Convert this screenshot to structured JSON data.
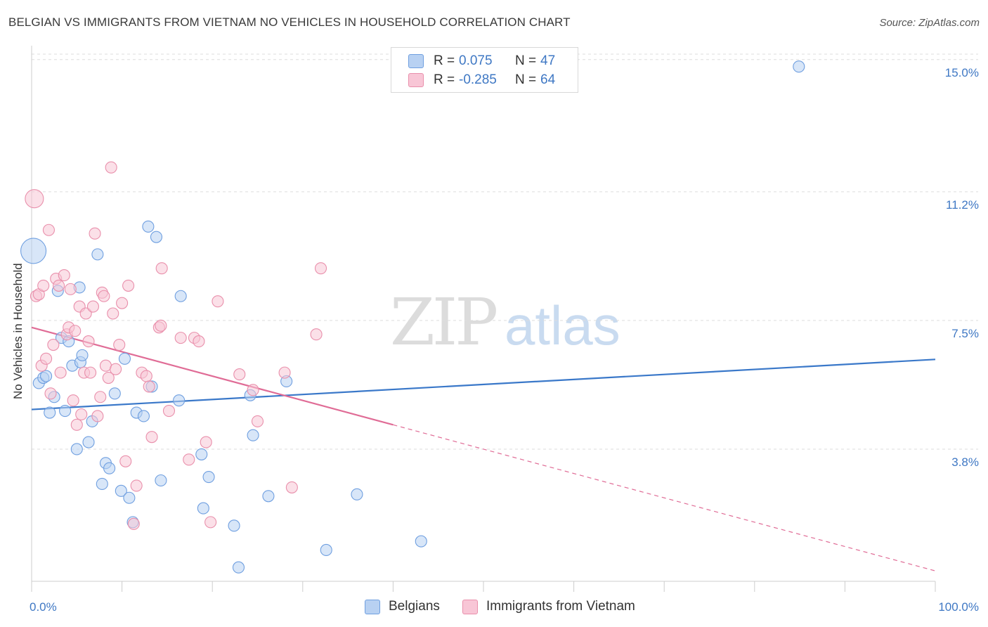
{
  "title": "BELGIAN VS IMMIGRANTS FROM VIETNAM NO VEHICLES IN HOUSEHOLD CORRELATION CHART",
  "source": "Source: ZipAtlas.com",
  "watermark": {
    "zip": "ZIP",
    "atlas": "atlas"
  },
  "legend": {
    "r_label": "R =",
    "n_label": "N =",
    "rows": [
      {
        "r": "0.075",
        "n": "47",
        "fill": "#b8d1f2",
        "stroke": "#6f9fe0"
      },
      {
        "r": "-0.285",
        "n": "64",
        "fill": "#f8c6d6",
        "stroke": "#e98fab"
      }
    ]
  },
  "bottom_legend": [
    "Belgians",
    "Immigrants from Vietnam"
  ],
  "chart_data": {
    "type": "scatter",
    "xlabel": "",
    "ylabel": "No Vehicles in Household",
    "x_tick_labels": [
      "0.0%",
      "100.0%"
    ],
    "y_tick_labels": [
      "3.8%",
      "7.5%",
      "11.2%",
      "15.0%"
    ],
    "y_ticks": [
      3.8,
      7.5,
      11.2,
      15.0
    ],
    "xlim": [
      0,
      100
    ],
    "ylim": [
      0,
      15.4
    ],
    "series": [
      {
        "name": "Belgians",
        "color": "#6f9fe0",
        "fill": "#b8d1f2",
        "trend_color": "#3a78c9",
        "trend": {
          "x0": 0,
          "y0": 4.94,
          "x1": 100,
          "y1": 6.38,
          "solid_until": 100
        },
        "points": [
          [
            0.2,
            9.5
          ],
          [
            0.8,
            5.7
          ],
          [
            1.3,
            5.85
          ],
          [
            2.0,
            4.85
          ],
          [
            2.5,
            5.3
          ],
          [
            2.9,
            8.35
          ],
          [
            3.3,
            7.0
          ],
          [
            3.7,
            4.9
          ],
          [
            4.1,
            6.9
          ],
          [
            4.5,
            6.2
          ],
          [
            5.0,
            3.8
          ],
          [
            5.4,
            6.3
          ],
          [
            5.6,
            6.5
          ],
          [
            6.3,
            4.0
          ],
          [
            6.7,
            4.6
          ],
          [
            7.3,
            9.4
          ],
          [
            7.8,
            2.8
          ],
          [
            8.2,
            3.4
          ],
          [
            8.6,
            3.25
          ],
          [
            9.2,
            5.4
          ],
          [
            9.9,
            2.6
          ],
          [
            10.3,
            6.4
          ],
          [
            10.8,
            2.4
          ],
          [
            11.2,
            1.7
          ],
          [
            11.6,
            4.85
          ],
          [
            12.4,
            4.75
          ],
          [
            12.9,
            10.2
          ],
          [
            13.3,
            5.6
          ],
          [
            13.8,
            9.9
          ],
          [
            14.3,
            2.9
          ],
          [
            16.3,
            5.2
          ],
          [
            16.5,
            8.2
          ],
          [
            18.8,
            3.65
          ],
          [
            19.0,
            2.1
          ],
          [
            19.6,
            3.0
          ],
          [
            22.4,
            1.6
          ],
          [
            22.9,
            0.4
          ],
          [
            24.2,
            5.35
          ],
          [
            24.5,
            4.2
          ],
          [
            26.2,
            2.45
          ],
          [
            28.2,
            5.75
          ],
          [
            32.6,
            0.9
          ],
          [
            36.0,
            2.5
          ],
          [
            43.1,
            1.15
          ],
          [
            84.9,
            14.8
          ],
          [
            5.3,
            8.45
          ],
          [
            1.6,
            5.9
          ]
        ]
      },
      {
        "name": "Immigrants from Vietnam",
        "color": "#e98fab",
        "fill": "#f8c6d6",
        "trend_color": "#e06c96",
        "trend": {
          "x0": 0,
          "y0": 7.3,
          "x1": 100,
          "y1": 0.3,
          "solid_until": 40
        },
        "points": [
          [
            0.3,
            11.0
          ],
          [
            0.5,
            8.2
          ],
          [
            0.8,
            8.25
          ],
          [
            1.1,
            6.2
          ],
          [
            1.3,
            8.5
          ],
          [
            1.6,
            6.4
          ],
          [
            1.9,
            10.1
          ],
          [
            2.1,
            5.4
          ],
          [
            2.4,
            6.8
          ],
          [
            2.7,
            8.7
          ],
          [
            3.0,
            8.5
          ],
          [
            3.2,
            6.0
          ],
          [
            3.6,
            8.8
          ],
          [
            3.9,
            7.1
          ],
          [
            4.1,
            7.3
          ],
          [
            4.3,
            8.4
          ],
          [
            4.6,
            5.2
          ],
          [
            4.8,
            7.2
          ],
          [
            5.0,
            4.5
          ],
          [
            5.3,
            7.9
          ],
          [
            5.5,
            4.8
          ],
          [
            5.8,
            6.0
          ],
          [
            6.0,
            7.7
          ],
          [
            6.3,
            6.9
          ],
          [
            6.5,
            6.0
          ],
          [
            6.8,
            7.9
          ],
          [
            7.0,
            10.0
          ],
          [
            7.3,
            4.75
          ],
          [
            7.6,
            5.3
          ],
          [
            7.8,
            8.3
          ],
          [
            8.0,
            8.2
          ],
          [
            8.2,
            6.2
          ],
          [
            8.5,
            5.85
          ],
          [
            8.8,
            11.9
          ],
          [
            9.0,
            7.7
          ],
          [
            9.3,
            6.1
          ],
          [
            9.7,
            6.8
          ],
          [
            10.0,
            8.0
          ],
          [
            10.4,
            3.45
          ],
          [
            10.7,
            8.5
          ],
          [
            11.3,
            1.65
          ],
          [
            11.6,
            2.75
          ],
          [
            12.2,
            6.0
          ],
          [
            12.7,
            5.9
          ],
          [
            13.0,
            5.6
          ],
          [
            13.3,
            4.15
          ],
          [
            14.1,
            7.3
          ],
          [
            14.3,
            7.35
          ],
          [
            14.4,
            9.0
          ],
          [
            15.2,
            4.9
          ],
          [
            16.5,
            7.0
          ],
          [
            17.4,
            3.5
          ],
          [
            18.0,
            7.0
          ],
          [
            18.5,
            6.9
          ],
          [
            19.3,
            4.0
          ],
          [
            19.8,
            1.7
          ],
          [
            20.6,
            8.05
          ],
          [
            23.0,
            5.95
          ],
          [
            24.5,
            5.5
          ],
          [
            25.0,
            4.6
          ],
          [
            28.0,
            6.0
          ],
          [
            28.8,
            2.7
          ],
          [
            31.5,
            7.1
          ],
          [
            32.0,
            9.0
          ]
        ]
      }
    ],
    "grid": true,
    "legend_position": "top-center"
  }
}
